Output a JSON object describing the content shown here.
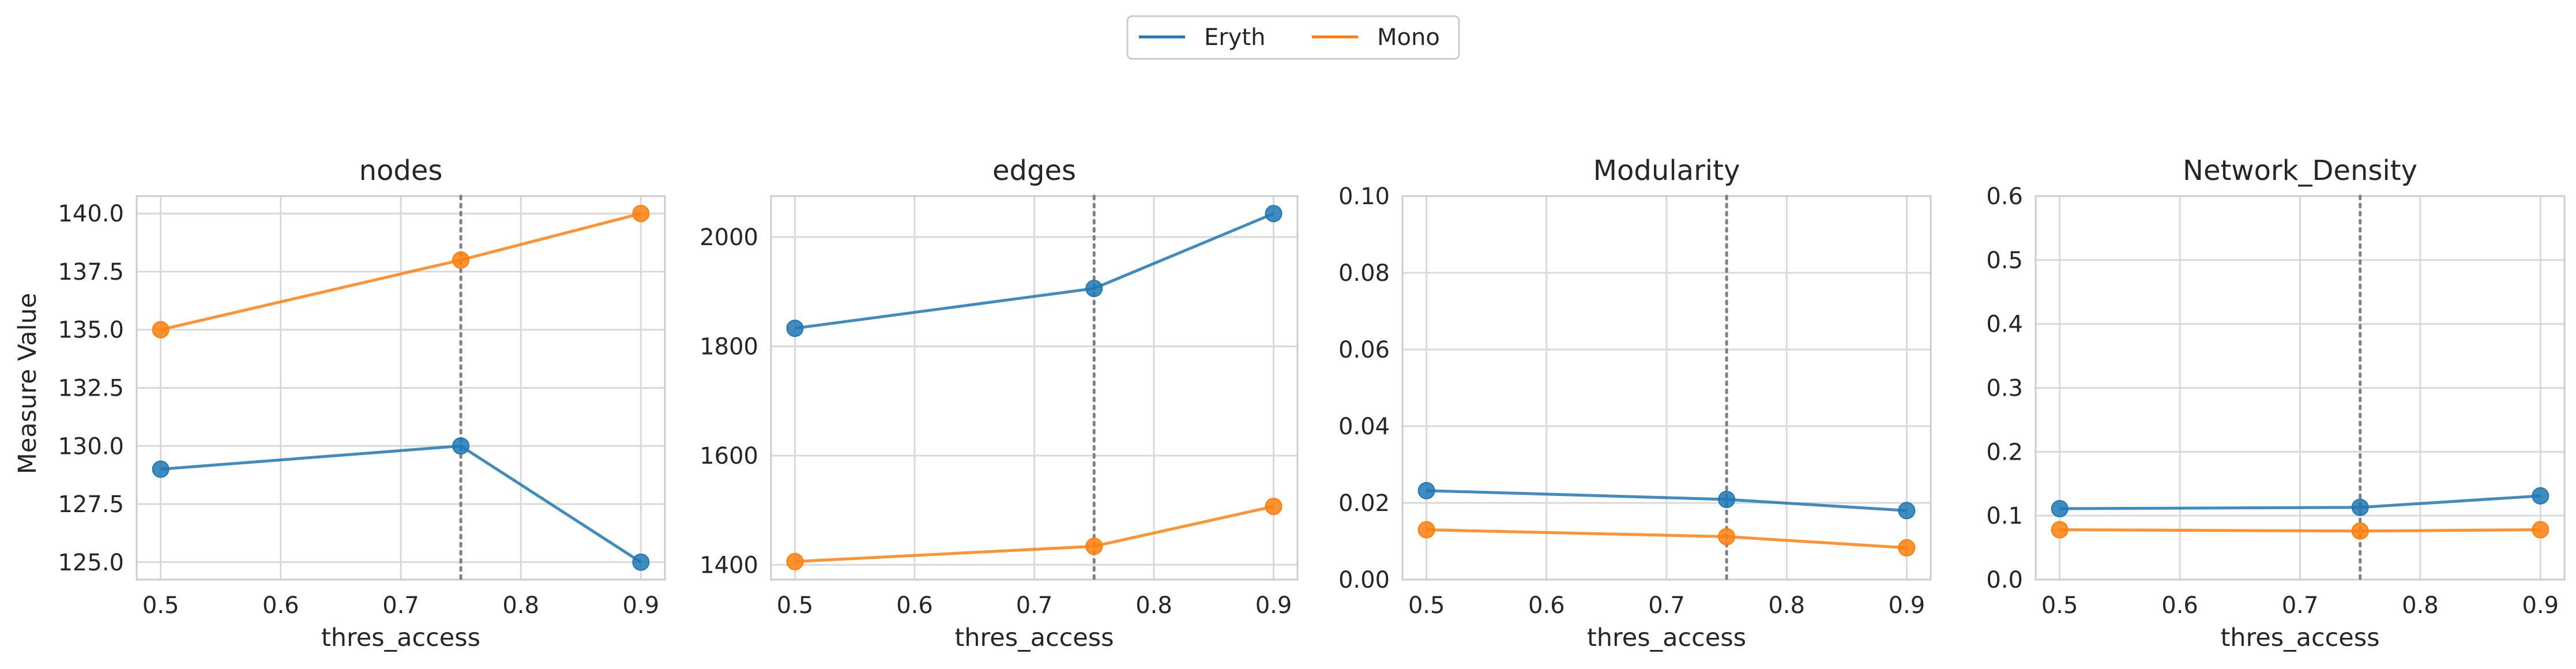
{
  "legend": {
    "entries": [
      {
        "label": "Eryth",
        "color": "#1f77b4"
      },
      {
        "label": "Mono",
        "color": "#ff7f0e"
      }
    ]
  },
  "shared_ylabel": "Measure Value",
  "reference_line_x": 0.75,
  "chart_data": [
    {
      "type": "line",
      "title": "nodes",
      "xlabel": "thres_access",
      "ylabel": "Measure Value",
      "x": [
        0.5,
        0.75,
        0.9
      ],
      "xticks": [
        0.5,
        0.6,
        0.7,
        0.8,
        0.9
      ],
      "xtick_labels": [
        "0.5",
        "0.6",
        "0.7",
        "0.8",
        "0.9"
      ],
      "xlim": [
        0.48,
        0.92
      ],
      "ylim": [
        124.25,
        140.75
      ],
      "yticks": [
        125.0,
        127.5,
        130.0,
        132.5,
        135.0,
        137.5,
        140.0
      ],
      "ytick_labels": [
        "125.0",
        "127.5",
        "130.0",
        "132.5",
        "135.0",
        "137.5",
        "140.0"
      ],
      "grid": true,
      "series": [
        {
          "name": "Eryth",
          "values": [
            129,
            130,
            125
          ]
        },
        {
          "name": "Mono",
          "values": [
            135,
            138,
            140
          ]
        }
      ]
    },
    {
      "type": "line",
      "title": "edges",
      "xlabel": "thres_access",
      "ylabel": "",
      "x": [
        0.5,
        0.75,
        0.9
      ],
      "xticks": [
        0.5,
        0.6,
        0.7,
        0.8,
        0.9
      ],
      "xtick_labels": [
        "0.5",
        "0.6",
        "0.7",
        "0.8",
        "0.9"
      ],
      "xlim": [
        0.48,
        0.92
      ],
      "ylim": [
        1373,
        2075
      ],
      "yticks": [
        1400,
        1600,
        1800,
        2000
      ],
      "ytick_labels": [
        "1400",
        "1600",
        "1800",
        "2000"
      ],
      "grid": true,
      "series": [
        {
          "name": "Eryth",
          "values": [
            1833,
            1906,
            2043
          ]
        },
        {
          "name": "Mono",
          "values": [
            1406,
            1434,
            1507
          ]
        }
      ]
    },
    {
      "type": "line",
      "title": "Modularity",
      "xlabel": "thres_access",
      "ylabel": "",
      "x": [
        0.5,
        0.75,
        0.9
      ],
      "xticks": [
        0.5,
        0.6,
        0.7,
        0.8,
        0.9
      ],
      "xtick_labels": [
        "0.5",
        "0.6",
        "0.7",
        "0.8",
        "0.9"
      ],
      "xlim": [
        0.48,
        0.92
      ],
      "ylim": [
        0.0,
        0.1
      ],
      "yticks": [
        0.0,
        0.02,
        0.04,
        0.06,
        0.08,
        0.1
      ],
      "ytick_labels": [
        "0.00",
        "0.02",
        "0.04",
        "0.06",
        "0.08",
        "0.10"
      ],
      "grid": true,
      "series": [
        {
          "name": "Eryth",
          "values": [
            0.0232,
            0.0209,
            0.018
          ]
        },
        {
          "name": "Mono",
          "values": [
            0.013,
            0.0112,
            0.0083
          ]
        }
      ]
    },
    {
      "type": "line",
      "title": "Network_Density",
      "xlabel": "thres_access",
      "ylabel": "",
      "x": [
        0.5,
        0.75,
        0.9
      ],
      "xticks": [
        0.5,
        0.6,
        0.7,
        0.8,
        0.9
      ],
      "xtick_labels": [
        "0.5",
        "0.6",
        "0.7",
        "0.8",
        "0.9"
      ],
      "xlim": [
        0.48,
        0.92
      ],
      "ylim": [
        0.0,
        0.6
      ],
      "yticks": [
        0.0,
        0.1,
        0.2,
        0.3,
        0.4,
        0.5,
        0.6
      ],
      "ytick_labels": [
        "0.0",
        "0.1",
        "0.2",
        "0.3",
        "0.4",
        "0.5",
        "0.6"
      ],
      "grid": true,
      "series": [
        {
          "name": "Eryth",
          "values": [
            0.111,
            0.113,
            0.131
          ]
        },
        {
          "name": "Mono",
          "values": [
            0.078,
            0.076,
            0.078
          ]
        }
      ]
    }
  ]
}
